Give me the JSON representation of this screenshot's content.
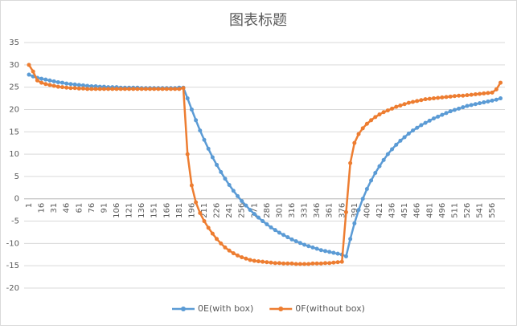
{
  "chart_data": {
    "type": "line",
    "title": "图表标题",
    "categories": [
      "1",
      null,
      null,
      "16",
      null,
      null,
      "31",
      null,
      null,
      "46",
      null,
      null,
      "61",
      null,
      null,
      "76",
      null,
      null,
      "91",
      null,
      null,
      "106",
      null,
      null,
      "121",
      null,
      null,
      "136",
      null,
      null,
      "151",
      null,
      null,
      "166",
      null,
      null,
      "181",
      null,
      null,
      "196",
      null,
      null,
      "211",
      null,
      null,
      "226",
      null,
      null,
      "241",
      null,
      null,
      "256",
      null,
      null,
      "271",
      null,
      null,
      "286",
      null,
      null,
      "301",
      null,
      null,
      "316",
      null,
      null,
      "331",
      null,
      null,
      "346",
      null,
      null,
      "361",
      null,
      null,
      "376",
      null,
      null,
      "391",
      null,
      null,
      "406",
      null,
      null,
      "421",
      null,
      null,
      "436",
      null,
      null,
      "451",
      null,
      null,
      "466",
      null,
      null,
      "481",
      null,
      null,
      "496",
      null,
      null,
      "511",
      null,
      null,
      "526",
      null,
      null,
      "541",
      null,
      null,
      "556",
      null,
      null
    ],
    "series": [
      {
        "name": "0E(with box)",
        "color": "#5b9bd5",
        "values": [
          27.8,
          27.4,
          27.1,
          26.9,
          26.7,
          26.5,
          26.3,
          26.1,
          26.0,
          25.8,
          25.7,
          25.6,
          25.5,
          25.4,
          25.3,
          25.2,
          25.2,
          25.1,
          25.1,
          25.0,
          25.0,
          25.0,
          24.9,
          24.9,
          24.9,
          24.9,
          24.9,
          24.8,
          24.8,
          24.8,
          24.8,
          24.8,
          24.8,
          24.8,
          24.8,
          24.8,
          24.9,
          24.9,
          22.5,
          20.0,
          17.6,
          15.3,
          13.2,
          11.2,
          9.3,
          7.6,
          6.0,
          4.5,
          3.1,
          1.8,
          0.6,
          -0.5,
          -1.5,
          -2.5,
          -3.4,
          -4.2,
          -5.0,
          -5.7,
          -6.4,
          -7.0,
          -7.6,
          -8.1,
          -8.6,
          -9.1,
          -9.5,
          -9.9,
          -10.3,
          -10.6,
          -10.9,
          -11.2,
          -11.5,
          -11.7,
          -11.9,
          -12.1,
          -12.3,
          -12.5,
          -12.9,
          -9.0,
          -5.5,
          -2.5,
          0.0,
          2.2,
          4.1,
          5.8,
          7.3,
          8.7,
          10.0,
          11.1,
          12.1,
          13.0,
          13.8,
          14.6,
          15.3,
          15.9,
          16.5,
          17.0,
          17.5,
          18.0,
          18.4,
          18.8,
          19.2,
          19.6,
          19.9,
          20.2,
          20.5,
          20.8,
          21.0,
          21.2,
          21.4,
          21.6,
          21.8,
          22.0,
          22.2,
          22.5
        ]
      },
      {
        "name": "0F(without box)",
        "color": "#ed7d31",
        "values": [
          30.0,
          28.5,
          26.5,
          26.0,
          25.7,
          25.5,
          25.3,
          25.1,
          25.0,
          24.9,
          24.8,
          24.8,
          24.7,
          24.7,
          24.6,
          24.6,
          24.6,
          24.6,
          24.6,
          24.6,
          24.6,
          24.6,
          24.6,
          24.6,
          24.6,
          24.6,
          24.6,
          24.6,
          24.6,
          24.6,
          24.6,
          24.6,
          24.6,
          24.6,
          24.6,
          24.6,
          24.6,
          24.8,
          10.0,
          3.0,
          -0.8,
          -3.2,
          -5.0,
          -6.5,
          -7.8,
          -9.0,
          -10.0,
          -10.9,
          -11.6,
          -12.2,
          -12.7,
          -13.1,
          -13.4,
          -13.7,
          -13.9,
          -14.0,
          -14.1,
          -14.2,
          -14.3,
          -14.4,
          -14.4,
          -14.5,
          -14.5,
          -14.5,
          -14.6,
          -14.6,
          -14.6,
          -14.6,
          -14.5,
          -14.5,
          -14.5,
          -14.4,
          -14.4,
          -14.3,
          -14.2,
          -14.1,
          -3.0,
          8.0,
          12.5,
          14.5,
          15.8,
          16.8,
          17.6,
          18.3,
          18.9,
          19.4,
          19.8,
          20.2,
          20.6,
          20.9,
          21.2,
          21.5,
          21.7,
          21.9,
          22.1,
          22.3,
          22.4,
          22.5,
          22.6,
          22.7,
          22.8,
          22.9,
          23.0,
          23.1,
          23.1,
          23.2,
          23.3,
          23.4,
          23.5,
          23.6,
          23.7,
          23.8,
          24.5,
          26.0
        ]
      }
    ],
    "ylim": [
      -20,
      35
    ],
    "yticks": [
      -20,
      -15,
      -10,
      -5,
      0,
      5,
      10,
      15,
      20,
      25,
      30,
      35
    ],
    "grid": true,
    "legend": "bottom"
  }
}
